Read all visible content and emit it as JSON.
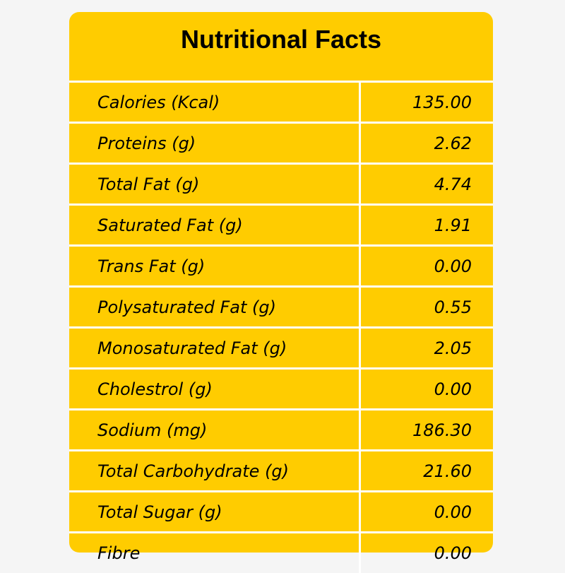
{
  "title": "Nutritional Facts",
  "colors": {
    "background": "#f5f5f5",
    "card": "#ffcc00",
    "grid_lines": "#ffffff",
    "text": "#000000"
  },
  "rows": [
    {
      "label": "Calories (Kcal)",
      "value": "135.00"
    },
    {
      "label": "Proteins (g)",
      "value": "2.62"
    },
    {
      "label": "Total Fat (g)",
      "value": "4.74"
    },
    {
      "label": "Saturated Fat (g)",
      "value": "1.91"
    },
    {
      "label": "Trans Fat (g)",
      "value": "0.00"
    },
    {
      "label": "Polysaturated Fat (g)",
      "value": "0.55"
    },
    {
      "label": "Monosaturated Fat (g)",
      "value": "2.05"
    },
    {
      "label": "Cholestrol (g)",
      "value": "0.00"
    },
    {
      "label": "Sodium (mg)",
      "value": "186.30"
    },
    {
      "label": "Total Carbohydrate (g)",
      "value": "21.60"
    },
    {
      "label": "Total Sugar (g)",
      "value": "0.00"
    },
    {
      "label": "Fibre",
      "value": "0.00"
    }
  ]
}
